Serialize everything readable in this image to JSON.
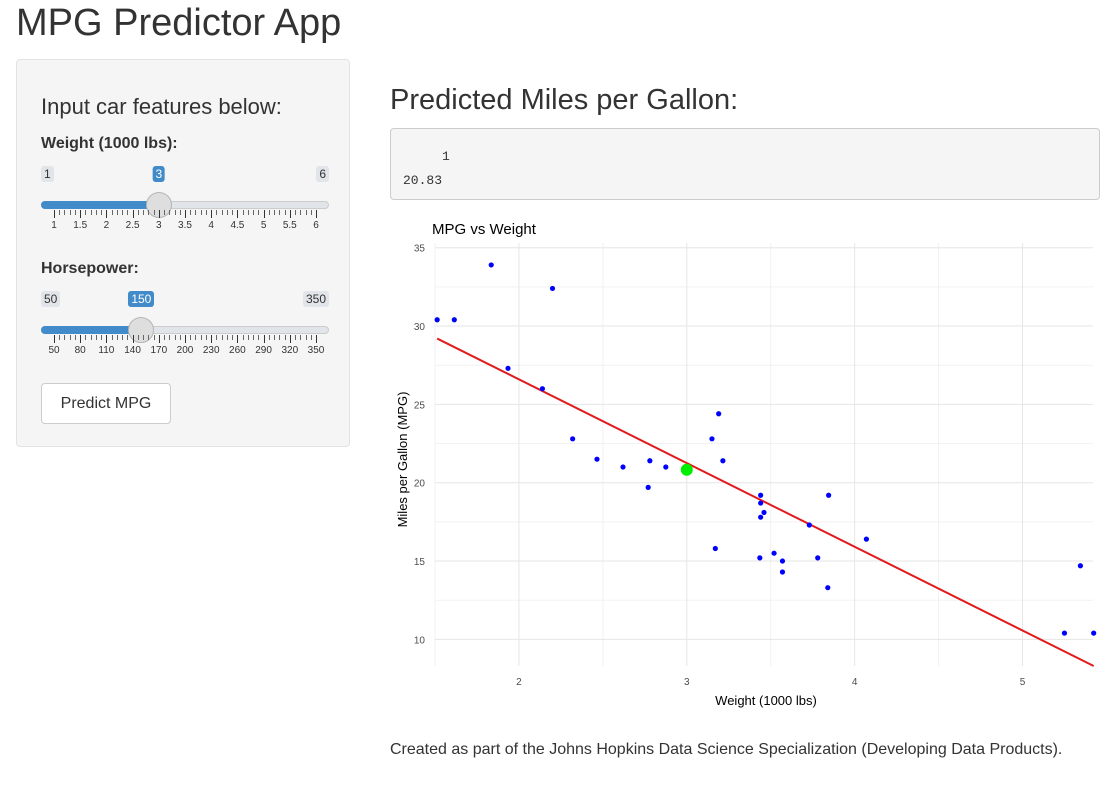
{
  "app": {
    "title": "MPG Predictor App"
  },
  "sidebar": {
    "heading": "Input car features below:",
    "weight": {
      "label": "Weight (1000 lbs):",
      "min": 1,
      "max": 6,
      "value": 3,
      "min_label": "1",
      "max_label": "6",
      "value_label": "3",
      "ticks": [
        "1",
        "1.5",
        "2",
        "2.5",
        "3",
        "3.5",
        "4",
        "4.5",
        "5",
        "5.5",
        "6"
      ]
    },
    "horsepower": {
      "label": "Horsepower:",
      "min": 50,
      "max": 350,
      "value": 150,
      "min_label": "50",
      "max_label": "350",
      "value_label": "150",
      "ticks": [
        "50",
        "80",
        "110",
        "140",
        "170",
        "200",
        "230",
        "260",
        "290",
        "320",
        "350"
      ]
    },
    "predict_button": "Predict MPG"
  },
  "main": {
    "heading": "Predicted Miles per Gallon:",
    "output_line1": "     1",
    "output_line2": "20.83"
  },
  "chart_data": {
    "type": "scatter",
    "title": "MPG vs Weight",
    "xlabel": "Weight (1000 lbs)",
    "ylabel": "Miles per Gallon (MPG)",
    "xlim": [
      1.5,
      5.42
    ],
    "ylim": [
      8.3,
      35.3
    ],
    "xticks": [
      2,
      3,
      4,
      5
    ],
    "yticks": [
      10,
      15,
      20,
      25,
      30,
      35
    ],
    "grid": true,
    "colors": {
      "points": "#0000ff",
      "fit_line": "#e31a1c",
      "prediction": "#00ee00"
    },
    "series": [
      {
        "x": [
          2.62,
          2.875,
          2.32,
          3.215,
          3.44,
          3.46,
          3.57,
          3.19,
          3.15,
          3.44,
          3.44,
          4.07,
          3.73,
          3.78,
          5.25,
          5.424,
          5.345,
          2.2,
          1.615,
          1.835,
          2.465,
          3.52,
          3.435,
          3.84,
          3.845,
          1.935,
          2.14,
          1.513,
          3.17,
          2.77,
          3.57,
          2.78
        ],
        "y": [
          21.0,
          21.0,
          22.8,
          21.4,
          18.7,
          18.1,
          14.3,
          24.4,
          22.8,
          19.2,
          17.8,
          16.4,
          17.3,
          15.2,
          10.4,
          10.4,
          14.7,
          32.4,
          30.4,
          33.9,
          21.5,
          15.5,
          15.2,
          13.3,
          19.2,
          27.3,
          26.0,
          30.4,
          15.8,
          19.7,
          15.0,
          21.4
        ]
      }
    ],
    "fit_line": {
      "x": [
        1.513,
        5.424
      ],
      "y": [
        29.2,
        8.3
      ]
    },
    "prediction": {
      "x": 3,
      "y": 20.83
    }
  },
  "footer": {
    "text": "Created as part of the Johns Hopkins Data Science Specialization (Developing Data Products)."
  }
}
